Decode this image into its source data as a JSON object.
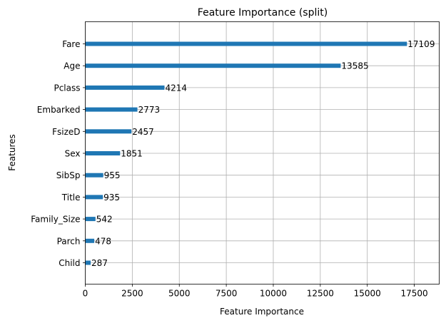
{
  "chart_data": {
    "type": "bar",
    "orientation": "horizontal",
    "title": "Feature Importance (split)",
    "xlabel": "Feature Importance",
    "ylabel": "Features",
    "categories": [
      "Child",
      "Parch",
      "Family_Size",
      "Title",
      "SibSp",
      "Sex",
      "FsizeD",
      "Embarked",
      "Pclass",
      "Age",
      "Fare"
    ],
    "values": [
      287,
      478,
      542,
      935,
      955,
      1851,
      2457,
      2773,
      4214,
      13585,
      17109
    ],
    "xlim": [
      0,
      18825
    ],
    "xticks": [
      0,
      2500,
      5000,
      7500,
      10000,
      12500,
      15000,
      17500
    ],
    "grid": true,
    "bar_color": "#1f77b4",
    "show_value_labels": true
  }
}
